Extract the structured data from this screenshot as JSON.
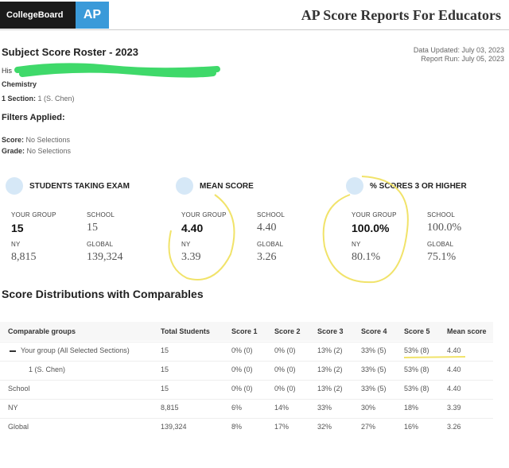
{
  "header": {
    "logo": "CollegeBoard",
    "badge": "AP",
    "title": "AP Score Reports For Educators"
  },
  "report": {
    "title": "Subject Score Roster - 2023",
    "data_updated": "Data Updated: July 03, 2023",
    "report_run": "Report Run: July 05, 2023",
    "school": "His",
    "subject": "Chemistry",
    "section_label": "1 Section:",
    "section_value": "1 (S. Chen)"
  },
  "filters": {
    "title": "Filters Applied:",
    "items": [
      {
        "label": "Score:",
        "value": "No Selections"
      },
      {
        "label": "Grade:",
        "value": "No Selections"
      }
    ]
  },
  "cards": [
    {
      "title": "STUDENTS TAKING EXAM",
      "stats": [
        {
          "label": "YOUR GROUP",
          "value": "15"
        },
        {
          "label": "SCHOOL",
          "value": "15"
        },
        {
          "label": "NY",
          "value": "8,815"
        },
        {
          "label": "GLOBAL",
          "value": "139,324"
        }
      ]
    },
    {
      "title": "MEAN SCORE",
      "stats": [
        {
          "label": "YOUR GROUP",
          "value": "4.40"
        },
        {
          "label": "SCHOOL",
          "value": "4.40"
        },
        {
          "label": "NY",
          "value": "3.39"
        },
        {
          "label": "GLOBAL",
          "value": "3.26"
        }
      ]
    },
    {
      "title": "% SCORES 3 OR HIGHER",
      "stats": [
        {
          "label": "YOUR GROUP",
          "value": "100.0%"
        },
        {
          "label": "SCHOOL",
          "value": "100.0%"
        },
        {
          "label": "NY",
          "value": "80.1%"
        },
        {
          "label": "GLOBAL",
          "value": "75.1%"
        }
      ]
    }
  ],
  "table": {
    "title": "Score Distributions with Comparables",
    "columns": [
      "Comparable groups",
      "Total Students",
      "Score 1",
      "Score 2",
      "Score 3",
      "Score 4",
      "Score 5",
      "Mean score"
    ],
    "rows": [
      [
        "Your group (All Selected Sections)",
        "15",
        "0% (0)",
        "0% (0)",
        "13% (2)",
        "33% (5)",
        "53% (8)",
        "4.40"
      ],
      [
        "1 (S. Chen)",
        "15",
        "0% (0)",
        "0% (0)",
        "13% (2)",
        "33% (5)",
        "53% (8)",
        "4.40"
      ],
      [
        "School",
        "15",
        "0% (0)",
        "0% (0)",
        "13% (2)",
        "33% (5)",
        "53% (8)",
        "4.40"
      ],
      [
        "NY",
        "8,815",
        "6%",
        "14%",
        "33%",
        "30%",
        "18%",
        "3.39"
      ],
      [
        "Global",
        "139,324",
        "8%",
        "17%",
        "32%",
        "27%",
        "16%",
        "3.26"
      ]
    ]
  }
}
